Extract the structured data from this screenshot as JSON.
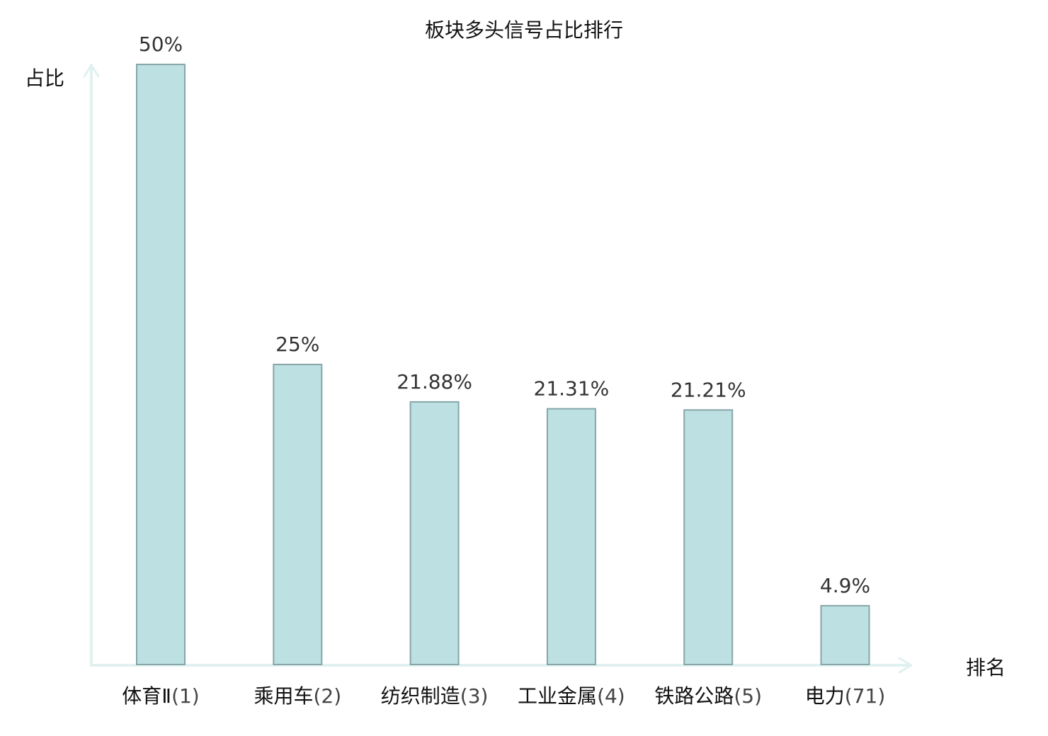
{
  "chart_data": {
    "type": "bar",
    "title": "板块多头信号占比排行",
    "ylabel": "占比",
    "xlabel": "排名",
    "ylim": [
      0,
      50
    ],
    "grid": false,
    "categories": [
      {
        "name": "体育Ⅱ",
        "rank": "(1)",
        "highlight": false
      },
      {
        "name": "乘用车",
        "rank": "(2)",
        "highlight": false
      },
      {
        "name": "纺织制造",
        "rank": "(3)",
        "highlight": false
      },
      {
        "name": "工业金属",
        "rank": "(4)",
        "highlight": false
      },
      {
        "name": "铁路公路",
        "rank": "(5)",
        "highlight": false
      },
      {
        "name": "电力",
        "rank": "(71)",
        "highlight": true
      }
    ],
    "values": [
      50,
      25,
      21.88,
      21.31,
      21.21,
      4.9
    ],
    "value_labels": [
      "50%",
      "25%",
      "21.88%",
      "21.31%",
      "21.21%",
      "4.9%"
    ]
  },
  "colors": {
    "bar_fill": "#bde0e2",
    "bar_stroke": "#86a6a9",
    "axis": "#e0f1ef",
    "highlight": "#e02020",
    "text": "#111111",
    "value_text": "#333333"
  }
}
